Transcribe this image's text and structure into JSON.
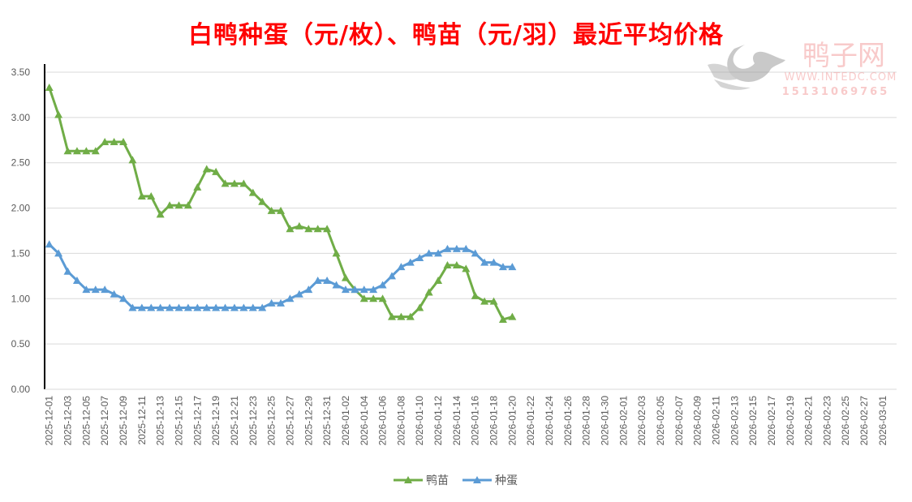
{
  "chart_data": {
    "type": "line",
    "title": "白鸭种蛋（元/枚）、鸭苗（元/羽）最近平均价格",
    "xlabel": "",
    "ylabel": "",
    "ylim": [
      0,
      3.5
    ],
    "ytick_step": 0.5,
    "yticks": [
      "0.00",
      "0.50",
      "1.00",
      "1.50",
      "2.00",
      "2.50",
      "3.00",
      "3.50"
    ],
    "grid": true,
    "legend_position": "bottom",
    "x_range": [
      "2025-12-01",
      "2026-03-02"
    ],
    "xtick_labels": [
      "2025-12-01",
      "2025-12-03",
      "2025-12-05",
      "2025-12-07",
      "2025-12-09",
      "2025-12-11",
      "2025-12-13",
      "2025-12-15",
      "2025-12-17",
      "2025-12-19",
      "2025-12-21",
      "2025-12-23",
      "2025-12-25",
      "2025-12-27",
      "2025-12-29",
      "2025-12-31",
      "2026-01-02",
      "2026-01-04",
      "2026-01-06",
      "2026-01-08",
      "2026-01-10",
      "2026-01-12",
      "2026-01-14",
      "2026-01-16",
      "2026-01-18",
      "2026-01-20",
      "2026-01-22",
      "2026-01-24",
      "2026-01-26",
      "2026-01-28",
      "2026-01-30",
      "2026-02-01",
      "2026-02-03",
      "2026-02-05",
      "2026-02-07",
      "2026-02-09",
      "2026-02-11",
      "2026-02-13",
      "2026-02-15",
      "2026-02-17",
      "2026-02-19",
      "2026-02-21",
      "2026-02-23",
      "2026-02-25",
      "2026-02-27",
      "2026-03-01"
    ],
    "x": [
      "2025-12-01",
      "2025-12-02",
      "2025-12-03",
      "2025-12-04",
      "2025-12-05",
      "2025-12-06",
      "2025-12-07",
      "2025-12-08",
      "2025-12-09",
      "2025-12-10",
      "2025-12-11",
      "2025-12-12",
      "2025-12-13",
      "2025-12-14",
      "2025-12-15",
      "2025-12-16",
      "2025-12-17",
      "2025-12-18",
      "2025-12-19",
      "2025-12-20",
      "2025-12-21",
      "2025-12-22",
      "2025-12-23",
      "2025-12-24",
      "2025-12-25",
      "2025-12-26",
      "2025-12-27",
      "2025-12-28",
      "2025-12-29",
      "2025-12-30",
      "2025-12-31",
      "2026-01-01",
      "2026-01-02",
      "2026-01-03",
      "2026-01-04",
      "2026-01-05",
      "2026-01-06",
      "2026-01-07",
      "2026-01-08",
      "2026-01-09",
      "2026-01-10",
      "2026-01-11",
      "2026-01-12",
      "2026-01-13",
      "2026-01-14",
      "2026-01-15",
      "2026-01-16",
      "2026-01-17",
      "2026-01-18",
      "2026-01-19",
      "2026-01-20"
    ],
    "series": [
      {
        "name": "鸭苗",
        "color": "#70ad47",
        "values": [
          3.33,
          3.03,
          2.63,
          2.63,
          2.63,
          2.63,
          2.73,
          2.73,
          2.73,
          2.53,
          2.13,
          2.13,
          1.93,
          2.03,
          2.03,
          2.03,
          2.23,
          2.43,
          2.4,
          2.27,
          2.27,
          2.27,
          2.17,
          2.07,
          1.97,
          1.97,
          1.77,
          1.8,
          1.77,
          1.77,
          1.77,
          1.5,
          1.23,
          1.1,
          1.0,
          1.0,
          1.0,
          0.8,
          0.8,
          0.8,
          0.9,
          1.07,
          1.2,
          1.37,
          1.37,
          1.33,
          1.03,
          0.97,
          0.97,
          0.77,
          0.8
        ]
      },
      {
        "name": "种蛋",
        "color": "#5b9bd5",
        "values": [
          1.6,
          1.5,
          1.3,
          1.2,
          1.1,
          1.1,
          1.1,
          1.05,
          1.0,
          0.9,
          0.9,
          0.9,
          0.9,
          0.9,
          0.9,
          0.9,
          0.9,
          0.9,
          0.9,
          0.9,
          0.9,
          0.9,
          0.9,
          0.9,
          0.95,
          0.95,
          1.0,
          1.05,
          1.1,
          1.2,
          1.2,
          1.15,
          1.1,
          1.1,
          1.1,
          1.1,
          1.15,
          1.25,
          1.35,
          1.4,
          1.45,
          1.5,
          1.5,
          1.55,
          1.55,
          1.55,
          1.5,
          1.4,
          1.4,
          1.35,
          1.35
        ]
      }
    ]
  },
  "watermark": {
    "name": "鸭子网",
    "url": "WWW.INTEDC.COM",
    "phone": "15131069765"
  }
}
